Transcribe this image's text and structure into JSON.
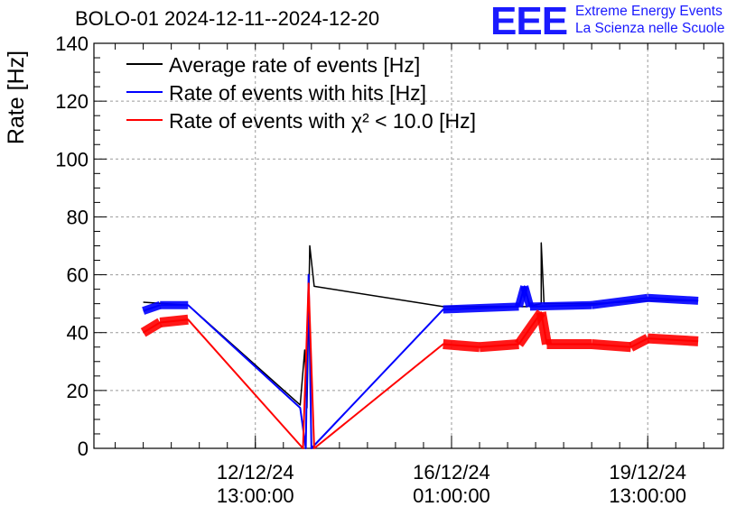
{
  "title": "BOLO-01 2024-12-11--2024-12-20",
  "logo": {
    "mark": "EEE",
    "line1": "Extreme Energy Events",
    "line2": "La Scienza nelle Scuole"
  },
  "colors": {
    "black": "#000000",
    "blue": "#0000ff",
    "red": "#ff0000",
    "logo": "#1a1aff",
    "grid": "#9a9a9a"
  },
  "chart_data": {
    "type": "line",
    "title": "BOLO-01 2024-12-11--2024-12-20",
    "xlabel": "",
    "ylabel": "Rate [Hz]",
    "ylim": [
      0,
      140
    ],
    "yticks": [
      0,
      20,
      40,
      60,
      80,
      100,
      120,
      140
    ],
    "xlim_days": [
      -1.38,
      9.85
    ],
    "xticks": [
      {
        "date": "12/12/24",
        "time": "13:00:00",
        "day": 1.5
      },
      {
        "date": "16/12/24",
        "time": "01:00:00",
        "day": 5.0
      },
      {
        "date": "19/12/24",
        "time": "13:00:00",
        "day": 8.5
      }
    ],
    "grid": true,
    "legend_position": "top-left",
    "series": [
      {
        "name": "Average rate of events [Hz]",
        "color": "#000000",
        "points": [
          [
            -0.5,
            50.5
          ],
          [
            0.3,
            49.5
          ],
          [
            2.3,
            15
          ],
          [
            2.38,
            34
          ],
          [
            2.42,
            14
          ],
          [
            2.47,
            70
          ],
          [
            2.55,
            56
          ],
          [
            4.85,
            49
          ],
          [
            6.0,
            49
          ],
          [
            6.35,
            49
          ],
          [
            6.6,
            50
          ],
          [
            6.6,
            71
          ],
          [
            6.65,
            50
          ],
          [
            7.5,
            50
          ],
          [
            8.5,
            51
          ],
          [
            9.4,
            51
          ]
        ]
      },
      {
        "name": "Rate of events with hits [Hz]",
        "color": "#0000ff",
        "points": [
          [
            -0.5,
            47.5
          ],
          [
            -0.2,
            49.5
          ],
          [
            0.3,
            49.5
          ],
          [
            2.3,
            14
          ],
          [
            2.4,
            0
          ],
          [
            2.45,
            60
          ],
          [
            2.5,
            0
          ],
          [
            4.85,
            48
          ],
          [
            6.2,
            49
          ],
          [
            6.3,
            56
          ],
          [
            6.4,
            49
          ],
          [
            7.5,
            49.5
          ],
          [
            8.5,
            52
          ],
          [
            9.4,
            51
          ]
        ]
      },
      {
        "name": "Rate of events with χ² < 10.0 [Hz]",
        "color": "#ff0000",
        "points": [
          [
            -0.5,
            40
          ],
          [
            -0.2,
            43.5
          ],
          [
            0.3,
            44.5
          ],
          [
            2.35,
            0
          ],
          [
            2.45,
            57
          ],
          [
            2.55,
            0
          ],
          [
            4.85,
            36
          ],
          [
            5.5,
            35
          ],
          [
            6.2,
            36
          ],
          [
            6.6,
            47
          ],
          [
            6.7,
            36
          ],
          [
            7.5,
            36
          ],
          [
            8.2,
            35
          ],
          [
            8.5,
            38
          ],
          [
            9.4,
            37
          ]
        ]
      }
    ]
  }
}
